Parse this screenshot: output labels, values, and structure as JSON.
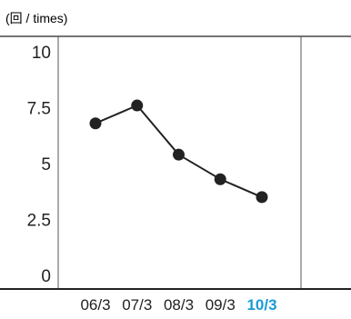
{
  "chart_data": {
    "type": "line",
    "unit_label": "(回 / times)",
    "categories": [
      "06/3",
      "07/3",
      "08/3",
      "09/3",
      "10/3"
    ],
    "highlight_category": "10/3",
    "series": [
      {
        "values": [
          6.8,
          7.6,
          5.4,
          4.3,
          3.5
        ]
      }
    ],
    "ylim": [
      0,
      10
    ],
    "yticks": [
      0,
      2.5,
      5,
      7.5,
      10
    ],
    "ytick_labels": [
      "0",
      "2.5",
      "5",
      "7.5",
      "10"
    ],
    "grid": false
  },
  "colors": {
    "line": "#222222",
    "marker": "#222222",
    "axis": "#222222",
    "frame": "#555555",
    "text": "#222222",
    "highlight": "#1a9ad6"
  }
}
